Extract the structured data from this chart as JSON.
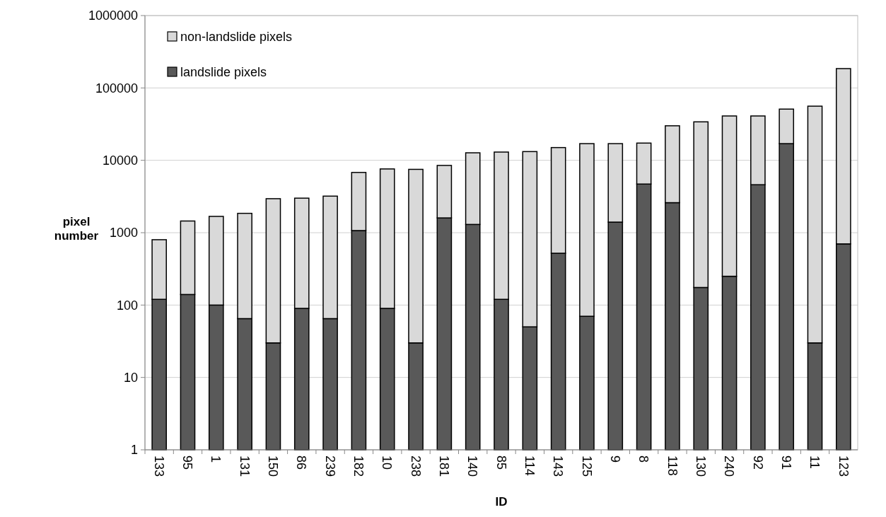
{
  "chart_data": {
    "type": "bar",
    "stacked": true,
    "log": true,
    "xlabel": "ID",
    "ylabel": "pixel\nnumber",
    "categories": [
      "133",
      "95",
      "1",
      "131",
      "150",
      "86",
      "239",
      "182",
      "10",
      "238",
      "181",
      "140",
      "85",
      "114",
      "143",
      "125",
      "9",
      "8",
      "118",
      "130",
      "240",
      "92",
      "91",
      "11",
      "123"
    ],
    "series": [
      {
        "name": "landslide pixels",
        "color": "#595959",
        "values": [
          120,
          140,
          100,
          65,
          30,
          90,
          65,
          1070,
          90,
          30,
          1600,
          1300,
          120,
          50,
          520,
          70,
          1400,
          4700,
          2600,
          175,
          250,
          4600,
          17000,
          30,
          700
        ]
      },
      {
        "name": "non-landslide pixels",
        "color": "#d9d9d9",
        "values": [
          680,
          1310,
          1580,
          1785,
          2920,
          2910,
          3135,
          5730,
          7510,
          7470,
          6900,
          11400,
          12880,
          13150,
          14480,
          16930,
          15600,
          12600,
          27400,
          33825,
          40750,
          36400,
          34000,
          55970,
          184300
        ]
      }
    ],
    "ylim": [
      1,
      1000000
    ],
    "yticks": [
      1,
      10,
      100,
      1000,
      10000,
      100000,
      1000000
    ],
    "grid": "y",
    "legend": "top left"
  }
}
